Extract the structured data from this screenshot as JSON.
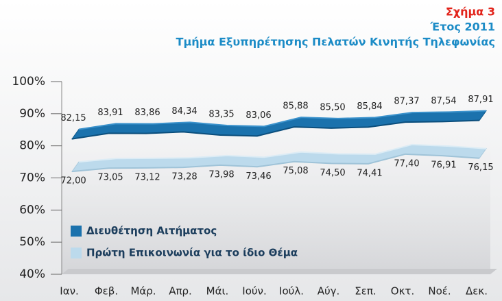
{
  "chart_data": {
    "type": "line",
    "title": "Σχήμα 3",
    "subtitle": "Έτος 2011",
    "subtitle2": "Τμήμα Εξυπηρέτησης Πελατών Κινητής Τηλεφωνίας",
    "categories": [
      "Ιαν.",
      "Φεβ.",
      "Μάρ.",
      "Απρ.",
      "Μάι.",
      "Ιούν.",
      "Ιούλ.",
      "Αύγ.",
      "Σεπ.",
      "Οκτ.",
      "Νοέ.",
      "Δεκ."
    ],
    "series": [
      {
        "name": "Διευθέτηση Αιτήματος",
        "color": "#1b72ad",
        "values": [
          82.15,
          83.91,
          83.86,
          84.34,
          83.35,
          83.06,
          85.88,
          85.5,
          85.84,
          87.37,
          87.54,
          87.91
        ],
        "value_labels": [
          "82,15",
          "83,91",
          "83,86",
          "84,34",
          "83,35",
          "83,06",
          "85,88",
          "85,50",
          "85,84",
          "87,37",
          "87,54",
          "87,91"
        ]
      },
      {
        "name": "Πρώτη Επικοινωνία για το ίδιο Θέμα",
        "color": "#bcdaec",
        "values": [
          72.0,
          73.05,
          73.12,
          73.28,
          73.98,
          73.46,
          75.08,
          74.5,
          74.41,
          77.4,
          76.91,
          76.15
        ],
        "value_labels": [
          "72,00",
          "73,05",
          "73,12",
          "73,28",
          "73,98",
          "73,46",
          "75,08",
          "74,50",
          "74,41",
          "77,40",
          "76,91",
          "76,15"
        ]
      }
    ],
    "ylim": [
      40,
      100
    ],
    "yticks": [
      {
        "value": 40,
        "label": "40%"
      },
      {
        "value": 50,
        "label": "50%"
      },
      {
        "value": 60,
        "label": "60%"
      },
      {
        "value": 70,
        "label": "70%"
      },
      {
        "value": 80,
        "label": "80%"
      },
      {
        "value": 90,
        "label": "90%"
      },
      {
        "value": 100,
        "label": "100%"
      }
    ],
    "legend": "lower left"
  }
}
